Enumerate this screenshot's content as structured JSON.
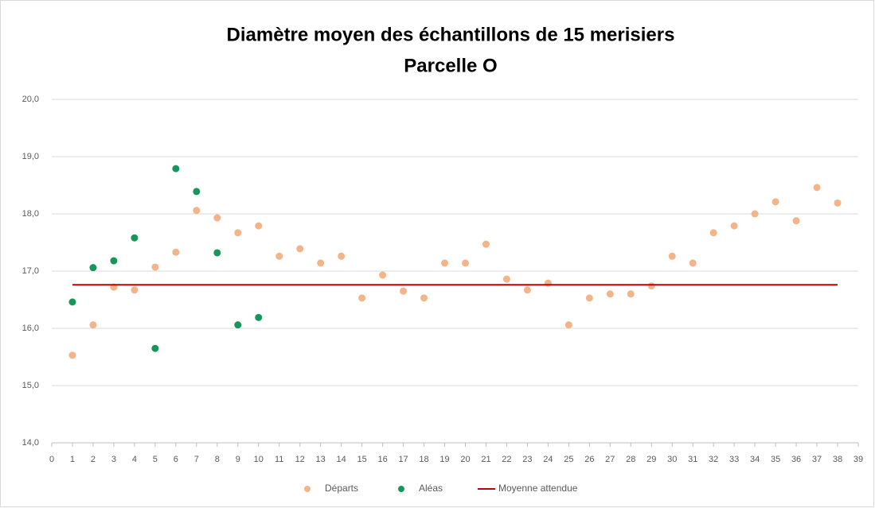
{
  "chart_data": {
    "type": "scatter",
    "title": "Diamètre moyen des échantillons de 15 merisiers",
    "subtitle": "Parcelle O",
    "xlim": [
      0,
      39
    ],
    "xticks": [
      0,
      1,
      2,
      3,
      4,
      5,
      6,
      7,
      8,
      9,
      10,
      11,
      12,
      13,
      14,
      15,
      16,
      17,
      18,
      19,
      20,
      21,
      22,
      23,
      24,
      25,
      26,
      27,
      28,
      29,
      30,
      31,
      32,
      33,
      34,
      35,
      36,
      37,
      38,
      39
    ],
    "ylim": [
      14,
      20
    ],
    "yticks": [
      {
        "value": 14,
        "label": "14,0"
      },
      {
        "value": 15,
        "label": "15,0"
      },
      {
        "value": 16,
        "label": "16,0"
      },
      {
        "value": 17,
        "label": "17,0"
      },
      {
        "value": 18,
        "label": "18,0"
      },
      {
        "value": 19,
        "label": "19,0"
      },
      {
        "value": 20,
        "label": "20,0"
      }
    ],
    "grid": true,
    "legend": "bottom",
    "series": [
      {
        "name": "Départs",
        "color": "#f2b58a",
        "type": "scatter",
        "x": [
          1,
          2,
          3,
          4,
          5,
          6,
          7,
          8,
          9,
          10,
          11,
          12,
          13,
          14,
          15,
          16,
          17,
          18,
          19,
          20,
          21,
          22,
          23,
          24,
          25,
          26,
          27,
          28,
          29,
          30,
          31,
          32,
          33,
          34,
          35,
          36,
          37,
          38
        ],
        "values": [
          15.53,
          16.06,
          16.72,
          16.67,
          17.07,
          17.33,
          18.06,
          17.93,
          17.67,
          17.79,
          17.26,
          17.39,
          17.14,
          17.26,
          16.53,
          16.93,
          16.65,
          16.53,
          17.14,
          17.14,
          17.47,
          16.86,
          16.67,
          16.79,
          16.06,
          16.53,
          16.6,
          16.6,
          16.74,
          17.26,
          17.14,
          17.67,
          17.79,
          18.0,
          18.21,
          17.88,
          18.46,
          18.19
        ]
      },
      {
        "name": "Aléas",
        "color": "#17965c",
        "type": "scatter",
        "x": [
          1,
          2,
          3,
          4,
          5,
          6,
          7,
          8,
          9,
          10
        ],
        "values": [
          16.46,
          17.06,
          17.18,
          17.58,
          15.65,
          18.79,
          18.39,
          17.32,
          16.06,
          16.19
        ]
      },
      {
        "name": "Moyenne attendue",
        "color": "#c00000",
        "type": "line",
        "x": [
          1,
          38
        ],
        "values": [
          16.76,
          16.76
        ]
      }
    ]
  }
}
